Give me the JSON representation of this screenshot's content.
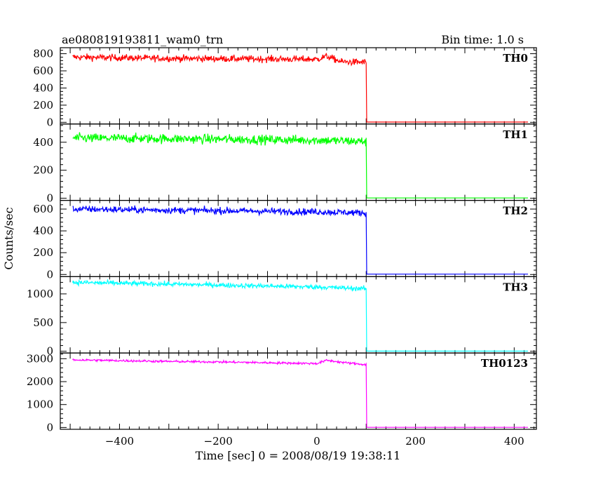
{
  "header": {
    "title": "ae080819193811_wam0_trn",
    "bin_time": "Bin time: 1.0 s"
  },
  "axes": {
    "xlabel": "Time [sec] 0 = 2008/08/19 19:38:11",
    "ylabel": "Counts/sec"
  },
  "chart_data": {
    "type": "line",
    "title": "ae080819193811_wam0_trn",
    "subtitle": "Bin time: 1.0 s",
    "xlabel": "Time [sec] 0 = 2008/08/19 19:38:11",
    "ylabel": "Counts/sec",
    "xlim": [
      -520,
      445
    ],
    "x_ticks": [
      -400,
      -200,
      0,
      200,
      400
    ],
    "x_tick_labels": [
      "−400",
      "−200",
      "0",
      "200",
      "400"
    ],
    "grid": false,
    "time_range": [
      -495,
      428
    ],
    "drop_time": 100,
    "panels": [
      {
        "name": "TH0",
        "color": "#ff0000",
        "ylim": [
          -20,
          870
        ],
        "y_ticks": [
          0,
          200,
          400,
          600,
          800
        ],
        "noise": 28,
        "levels": [
          [
            -495,
            760
          ],
          [
            -300,
            745
          ],
          [
            0,
            735
          ],
          [
            20,
            770
          ],
          [
            50,
            705
          ],
          [
            100,
            700
          ]
        ],
        "after": 3
      },
      {
        "name": "TH1",
        "color": "#00ff00",
        "ylim": [
          -15,
          530
        ],
        "y_ticks": [
          0,
          200,
          400
        ],
        "noise": 24,
        "levels": [
          [
            -495,
            430
          ],
          [
            -300,
            425
          ],
          [
            0,
            415
          ],
          [
            100,
            405
          ]
        ],
        "after": 2
      },
      {
        "name": "TH2",
        "color": "#0000ff",
        "ylim": [
          -20,
          680
        ],
        "y_ticks": [
          0,
          200,
          400,
          600
        ],
        "noise": 22,
        "levels": [
          [
            -495,
            600
          ],
          [
            -300,
            590
          ],
          [
            0,
            575
          ],
          [
            100,
            565
          ]
        ],
        "after": 3
      },
      {
        "name": "TH3",
        "color": "#00ffff",
        "ylim": [
          -30,
          1300
        ],
        "y_ticks": [
          0,
          500,
          1000
        ],
        "noise": 30,
        "levels": [
          [
            -495,
            1200
          ],
          [
            -300,
            1170
          ],
          [
            0,
            1120
          ],
          [
            100,
            1090
          ]
        ],
        "after": 3
      },
      {
        "name": "TH0123",
        "color": "#ff00ff",
        "ylim": [
          -80,
          3250
        ],
        "y_ticks": [
          0,
          1000,
          2000,
          3000
        ],
        "noise": 35,
        "levels": [
          [
            -495,
            2950
          ],
          [
            -300,
            2880
          ],
          [
            -200,
            2860
          ],
          [
            0,
            2790
          ],
          [
            20,
            2930
          ],
          [
            60,
            2820
          ],
          [
            100,
            2740
          ]
        ],
        "after": 5
      }
    ]
  }
}
